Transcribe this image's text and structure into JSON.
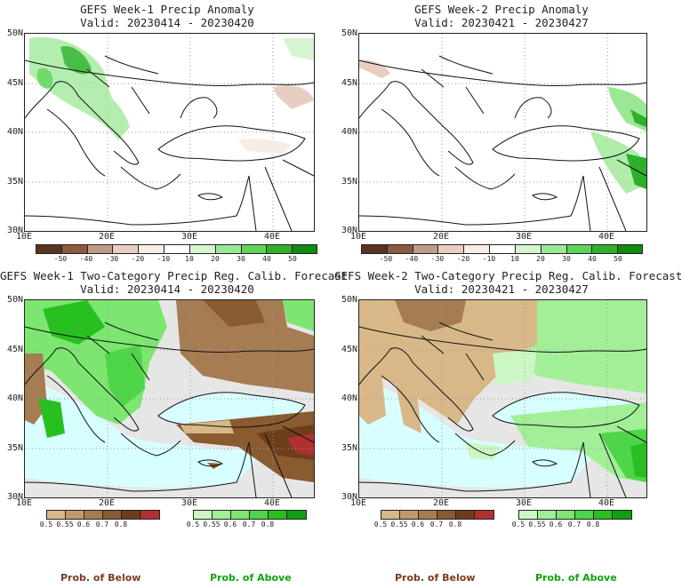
{
  "panels": [
    {
      "title": "GEFS Week-1 Precip Anomaly",
      "valid": "Valid: 20230414 - 20230420"
    },
    {
      "title": "GEFS Week-2 Precip Anomaly",
      "valid": "Valid: 20230421 - 20230427"
    },
    {
      "title": "GEFS Week-1 Two-Category Precip Reg. Calib. Forecast",
      "valid": "Valid: 20230414 - 20230420"
    },
    {
      "title": "GEFS Week-2 Two-Category Precip Reg. Calib. Forecast",
      "valid": "Valid: 20230421 - 20230427"
    }
  ],
  "lat_labels": [
    "50N",
    "45N",
    "40N",
    "35N",
    "30N"
  ],
  "lon_labels": [
    "10E",
    "20E",
    "30E",
    "40E"
  ],
  "anomaly_scale": {
    "ticks": [
      "-50",
      "-40",
      "-30",
      "-20",
      "-10",
      "10",
      "20",
      "30",
      "40",
      "50"
    ],
    "colors": [
      "#5a3420",
      "#8c5a40",
      "#c09a88",
      "#e8cec2",
      "#f7ece6",
      "#ffffff",
      "#d6f4d0",
      "#9be894",
      "#5fd45a",
      "#2eb02a",
      "#118a12"
    ]
  },
  "below_scale": {
    "ticks": [
      "0.5",
      "0.55",
      "0.6",
      "0.7",
      "0.8"
    ],
    "colors": [
      "#d8b888",
      "#bf9b6c",
      "#a67c52",
      "#8a5a30",
      "#6e3e1c",
      "#b03030"
    ]
  },
  "above_scale": {
    "ticks": [
      "0.5",
      "0.55",
      "0.6",
      "0.7",
      "0.8"
    ],
    "colors": [
      "#ccf7c4",
      "#a2ef98",
      "#7ce670",
      "#4fd548",
      "#28c020",
      "#10a010"
    ]
  },
  "legend": {
    "below": "Prob. of Below",
    "above": "Prob. of Above",
    "below_color": "#7a3b1e",
    "above_color": "#0ea30e"
  }
}
